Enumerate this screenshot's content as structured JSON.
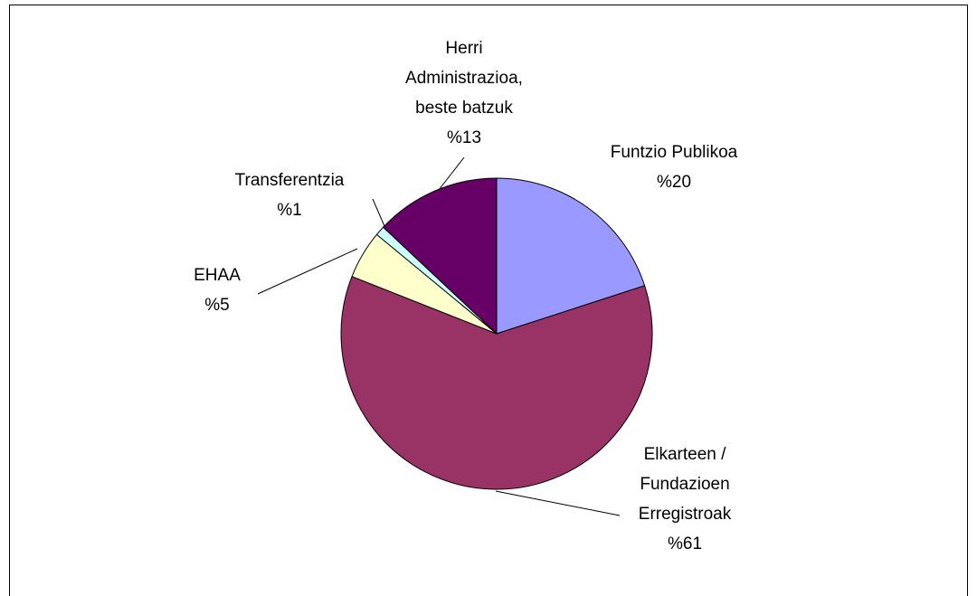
{
  "chart_data": {
    "type": "pie",
    "categories": [
      "Funtzio Publikoa",
      "Elkarteen / Fundazioen Erregistroak",
      "EHAA",
      "Transferentzia",
      "Herri Administrazioa, beste batzuk"
    ],
    "values": [
      20,
      61,
      5,
      1,
      13
    ],
    "value_labels": [
      "%20",
      "%61",
      "%5",
      "%1",
      "%13"
    ],
    "colors": [
      "#9999ff",
      "#993366",
      "#ffffcc",
      "#ccffff",
      "#660066"
    ]
  }
}
